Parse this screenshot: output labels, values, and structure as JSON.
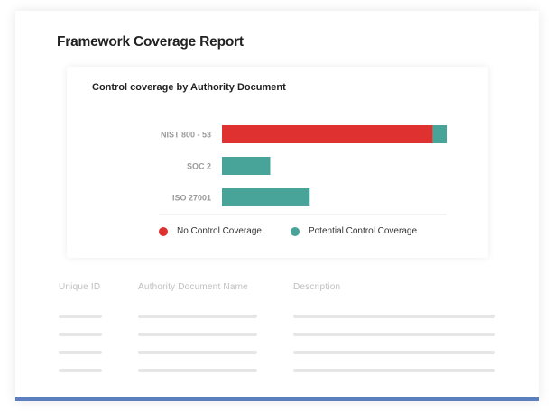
{
  "report": {
    "title": "Framework Coverage Report"
  },
  "chart_data": {
    "type": "bar",
    "orientation": "horizontal",
    "stacked": true,
    "title": "Control coverage by Authority Document",
    "categories": [
      "NIST 800 - 53",
      "SOC 2",
      "ISO 27001"
    ],
    "series": [
      {
        "name": "No Control Coverage",
        "color": "#e03131",
        "values": [
          240,
          0,
          0
        ]
      },
      {
        "name": "Potential Control Coverage",
        "color": "#48a398",
        "values": [
          16,
          55,
          100
        ]
      }
    ],
    "xlim": [
      0,
      256
    ],
    "grid": false,
    "legend_position": "bottom"
  },
  "table": {
    "headers": [
      "Unique ID",
      "Authority Document Name",
      "Description"
    ],
    "placeholder_rows": 4
  },
  "colors": {
    "accent_bar": "#5b7fbf",
    "no_coverage": "#e03131",
    "potential_coverage": "#48a398"
  }
}
